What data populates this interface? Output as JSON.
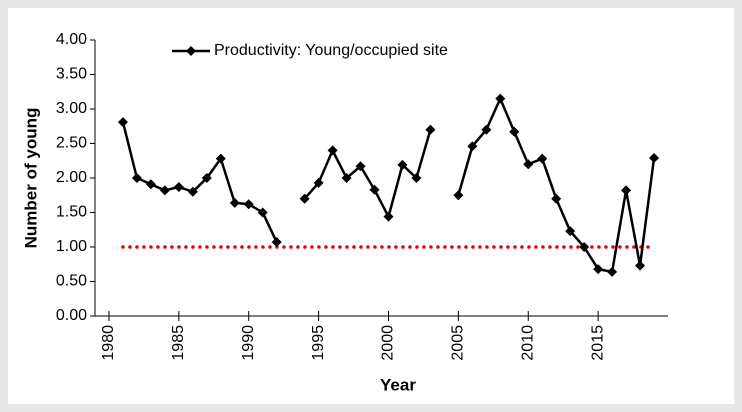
{
  "chart_data": {
    "type": "line",
    "x_label": "Year",
    "y_label": "Number of young",
    "x": [
      1981,
      1982,
      1983,
      1984,
      1985,
      1986,
      1987,
      1988,
      1989,
      1990,
      1991,
      1992,
      1993,
      1994,
      1995,
      1996,
      1997,
      1998,
      1999,
      2000,
      2001,
      2002,
      2003,
      2004,
      2005,
      2006,
      2007,
      2008,
      2009,
      2010,
      2011,
      2012,
      2013,
      2014,
      2015,
      2016,
      2017,
      2018,
      2019
    ],
    "series": [
      {
        "name": "Productivity: Young/occupied site",
        "color": "#000000",
        "values": [
          2.81,
          2.0,
          1.91,
          1.82,
          1.87,
          1.8,
          2.0,
          2.28,
          1.64,
          1.62,
          1.5,
          1.07,
          null,
          1.7,
          1.93,
          2.4,
          2.0,
          2.17,
          1.83,
          1.44,
          2.19,
          2.0,
          2.7,
          null,
          1.75,
          2.46,
          2.7,
          3.15,
          2.67,
          2.2,
          2.28,
          1.7,
          1.23,
          1.0,
          0.68,
          0.64,
          1.82,
          0.73,
          2.29
        ]
      }
    ],
    "reference_line": {
      "y": 1.0,
      "x": [
        1981,
        2019
      ],
      "color": "#e00000"
    },
    "xlim": [
      1979,
      2020
    ],
    "xticks": [
      1980,
      1985,
      1990,
      1995,
      2000,
      2005,
      2010,
      2015
    ],
    "ylim": [
      0,
      4
    ],
    "yticks": [
      {
        "value": 0,
        "label": "0.00"
      },
      {
        "value": 0.5,
        "label": "0.50"
      },
      {
        "value": 1,
        "label": "1.00"
      },
      {
        "value": 1.5,
        "label": "1.50"
      },
      {
        "value": 2,
        "label": "2.00"
      },
      {
        "value": 2.5,
        "label": "2.50"
      },
      {
        "value": 3,
        "label": "3.00"
      },
      {
        "value": 3.5,
        "label": "3.50"
      },
      {
        "value": 4,
        "label": "4.00"
      }
    ],
    "legend": "top"
  }
}
